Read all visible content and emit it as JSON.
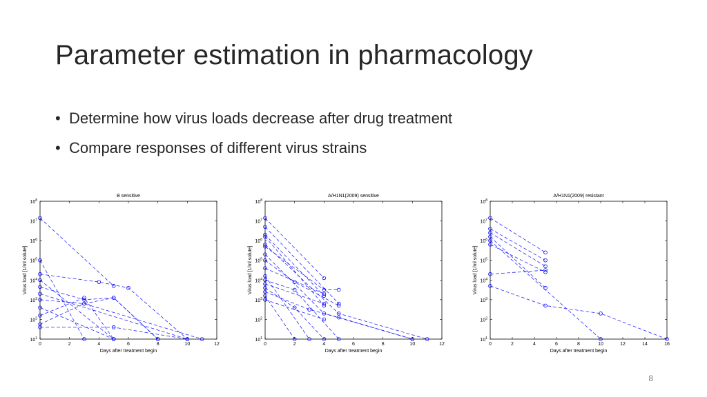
{
  "slide": {
    "title": "Parameter estimation in pharmacology",
    "bullets": [
      "Determine how virus loads decrease after drug treatment",
      "Compare responses of different virus strains"
    ],
    "page_number": "8"
  },
  "chart_data": [
    {
      "type": "line",
      "title": "B sensitive",
      "xlabel": "Days after treatment begin",
      "ylabel": "Virus load [1/ml solute]",
      "xlim": [
        0,
        12
      ],
      "xticks": [
        0,
        2,
        4,
        6,
        8,
        10,
        12
      ],
      "ylim_exp": [
        1,
        8
      ],
      "y_scale": "log",
      "color": "#0000ff",
      "series": [
        {
          "points": [
            [
              0,
              7.15
            ],
            [
              5,
              3.7
            ]
          ]
        },
        {
          "points": [
            [
              0,
              5.0
            ],
            [
              3,
              1.0
            ]
          ]
        },
        {
          "points": [
            [
              0,
              4.3
            ],
            [
              4,
              3.9
            ],
            [
              6,
              3.6
            ],
            [
              10,
              1.0
            ]
          ]
        },
        {
          "points": [
            [
              0,
              3.65
            ],
            [
              3,
              3.0
            ],
            [
              5,
              3.1
            ],
            [
              8,
              1.0
            ]
          ]
        },
        {
          "points": [
            [
              0,
              3.0
            ],
            [
              3,
              2.8
            ],
            [
              5,
              3.1
            ],
            [
              8,
              1.0
            ]
          ]
        },
        {
          "points": [
            [
              0,
              2.6
            ],
            [
              5,
              1.0
            ]
          ]
        },
        {
          "points": [
            [
              0,
              2.2
            ],
            [
              3,
              3.1
            ],
            [
              5,
              1.0
            ]
          ]
        },
        {
          "points": [
            [
              0,
              1.75
            ],
            [
              3,
              2.8
            ],
            [
              11,
              1.0
            ]
          ]
        },
        {
          "points": [
            [
              0,
              1.6
            ],
            [
              5,
              1.6
            ],
            [
              10,
              1.0
            ]
          ]
        },
        {
          "points": [
            [
              0,
              4.0
            ],
            [
              5,
              1.0
            ]
          ]
        },
        {
          "points": [
            [
              0,
              3.3
            ],
            [
              10,
              1.0
            ]
          ]
        }
      ]
    },
    {
      "type": "line",
      "title": "A/H1N1(2009) sensitive",
      "xlabel": "Days after treatment begin",
      "ylabel": "Virus load [1/ml solute]",
      "xlim": [
        0,
        12
      ],
      "xticks": [
        0,
        2,
        4,
        6,
        8,
        10,
        12
      ],
      "ylim_exp": [
        1,
        8
      ],
      "y_scale": "log",
      "color": "#0000ff",
      "series": [
        {
          "points": [
            [
              0,
              7.15
            ],
            [
              4,
              4.1
            ]
          ]
        },
        {
          "points": [
            [
              0,
              6.7
            ],
            [
              5,
              2.8
            ]
          ]
        },
        {
          "points": [
            [
              0,
              6.3
            ],
            [
              4,
              3.2
            ]
          ]
        },
        {
          "points": [
            [
              0,
              6.2
            ],
            [
              4,
              2.7
            ]
          ]
        },
        {
          "points": [
            [
              0,
              5.8
            ],
            [
              5,
              2.3
            ],
            [
              11,
              1.0
            ]
          ]
        },
        {
          "points": [
            [
              0,
              5.7
            ],
            [
              4,
              3.5
            ],
            [
              5,
              3.5
            ]
          ]
        },
        {
          "points": [
            [
              0,
              5.3
            ],
            [
              4,
              2.3
            ],
            [
              10,
              1.0
            ]
          ]
        },
        {
          "points": [
            [
              0,
              5.0
            ],
            [
              2,
              3.9
            ],
            [
              5,
              2.7
            ]
          ]
        },
        {
          "points": [
            [
              0,
              4.6
            ],
            [
              4,
              3.3
            ]
          ]
        },
        {
          "points": [
            [
              0,
              4.2
            ],
            [
              3,
              1.0
            ]
          ]
        },
        {
          "points": [
            [
              0,
              4.0
            ],
            [
              2,
              3.5
            ],
            [
              5,
              1.0
            ]
          ]
        },
        {
          "points": [
            [
              0,
              3.8
            ],
            [
              4,
              2.8
            ]
          ]
        },
        {
          "points": [
            [
              0,
              3.6
            ],
            [
              2,
              2.6
            ],
            [
              4,
              1.0
            ]
          ]
        },
        {
          "points": [
            [
              0,
              3.4
            ],
            [
              3,
              2.5
            ],
            [
              5,
              2.1
            ],
            [
              10,
              1.0
            ]
          ]
        },
        {
          "points": [
            [
              0,
              3.2
            ],
            [
              2,
              1.0
            ]
          ]
        },
        {
          "points": [
            [
              0,
              3.0
            ],
            [
              4,
              2.0
            ]
          ]
        }
      ]
    },
    {
      "type": "line",
      "title": "A/H1N1(2009) resistant",
      "xlabel": "Days after treatment begin",
      "ylabel": "Virus load [1/ml solute]",
      "xlim": [
        0,
        16
      ],
      "xticks": [
        0,
        2,
        4,
        6,
        8,
        10,
        12,
        14,
        16
      ],
      "ylim_exp": [
        1,
        8
      ],
      "y_scale": "log",
      "color": "#0000ff",
      "series": [
        {
          "points": [
            [
              0,
              7.15
            ],
            [
              5,
              5.4
            ]
          ]
        },
        {
          "points": [
            [
              0,
              6.6
            ],
            [
              5,
              5.0
            ]
          ]
        },
        {
          "points": [
            [
              0,
              6.4
            ],
            [
              5,
              4.7
            ]
          ]
        },
        {
          "points": [
            [
              0,
              6.2
            ],
            [
              5,
              3.6
            ]
          ]
        },
        {
          "points": [
            [
              0,
              5.8
            ],
            [
              5,
              4.4
            ]
          ]
        },
        {
          "points": [
            [
              0,
              4.3
            ],
            [
              5,
              4.5
            ]
          ]
        },
        {
          "points": [
            [
              0,
              6.0
            ],
            [
              10,
              1.0
            ]
          ]
        },
        {
          "points": [
            [
              0,
              3.7
            ],
            [
              5,
              2.7
            ],
            [
              10,
              2.3
            ],
            [
              16,
              1.0
            ]
          ]
        }
      ]
    }
  ]
}
